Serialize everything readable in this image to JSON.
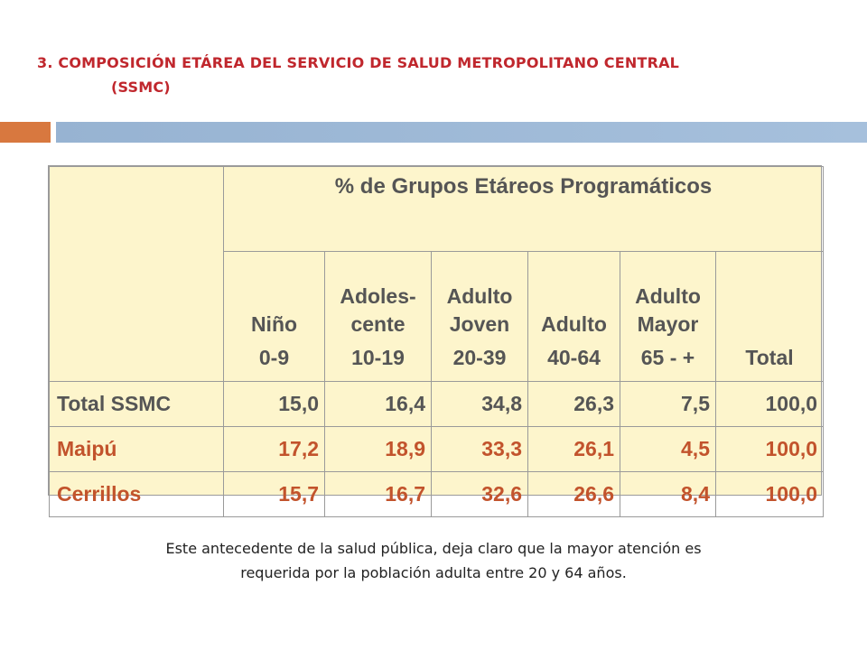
{
  "title": {
    "line1": "3. COMPOSICIÓN ETÁREA DEL SERVICIO DE SALUD METROPOLITANO CENTRAL",
    "line2": "(SSMC)"
  },
  "table": {
    "super_header": "% de Grupos Etáreos  Programáticos",
    "columns": [
      {
        "label1": "",
        "label2": "Niño",
        "range": "0-9"
      },
      {
        "label1": "Adoles-",
        "label2": "cente",
        "range": "10-19"
      },
      {
        "label1": "Adulto",
        "label2": "Joven",
        "range": "20-39"
      },
      {
        "label1": "",
        "label2": "Adulto",
        "range": "40-64"
      },
      {
        "label1": "Adulto",
        "label2": "Mayor",
        "range": "65 - +"
      },
      {
        "label1": "",
        "label2": "",
        "range": "Total"
      }
    ],
    "rows": [
      {
        "label": "Total SSMC",
        "values": [
          "15,0",
          "16,4",
          "34,8",
          "26,3",
          "7,5",
          "100,0"
        ]
      },
      {
        "label": "Maipú",
        "values": [
          "17,2",
          "18,9",
          "33,3",
          "26,1",
          "4,5",
          "100,0"
        ]
      },
      {
        "label": "Cerrillos",
        "values": [
          "15,7",
          "16,7",
          "32,6",
          "26,6",
          "8,4",
          "100,0"
        ]
      }
    ]
  },
  "caption": {
    "line1": "Este antecedente de la salud pública, deja claro que la mayor atención es",
    "line2": "requerida por la población adulta entre 20 y 64 años."
  }
}
